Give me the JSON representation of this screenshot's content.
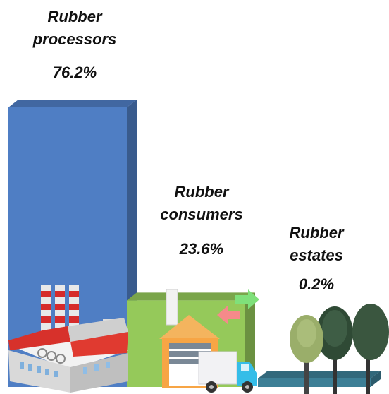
{
  "chart_data": {
    "type": "bar",
    "style": "3d",
    "categories": [
      "Rubber processors",
      "Rubber consumers",
      "Rubber estates"
    ],
    "category_lines": [
      [
        "Rubber",
        "processors"
      ],
      [
        "Rubber",
        "consumers"
      ],
      [
        "Rubber",
        "estates"
      ]
    ],
    "values": [
      76.2,
      23.6,
      0.2
    ],
    "value_labels": [
      "76.2%",
      "23.6%",
      "0.2%"
    ],
    "unit": "%",
    "ylim": [
      0,
      100
    ],
    "grid": false,
    "legend": "none",
    "colors": [
      "#4f7ec4",
      "#95c95a",
      "#3d7f96"
    ],
    "icons": [
      "factory-icon",
      "warehouse-truck-icon",
      "trees-icon"
    ]
  }
}
